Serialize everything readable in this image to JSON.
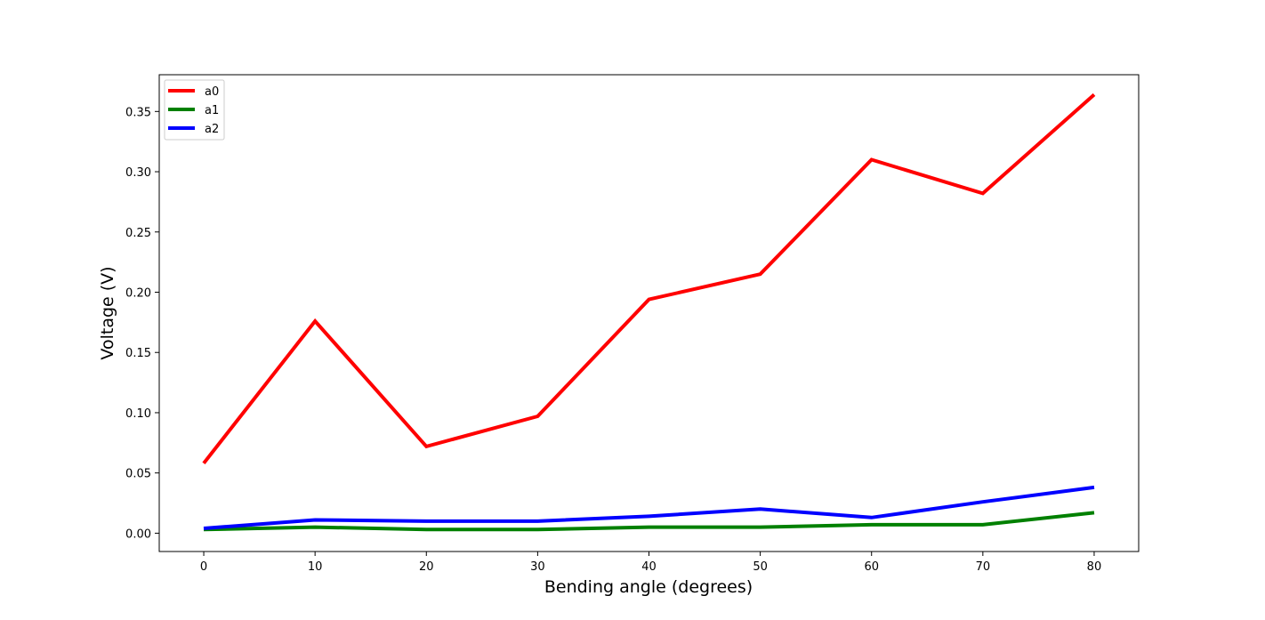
{
  "chart_data": {
    "type": "line",
    "title": "",
    "xlabel": "Bending angle (degrees)",
    "ylabel": "Voltage (V)",
    "xlim": [
      -4,
      84
    ],
    "ylim": [
      -0.0152,
      0.3805
    ],
    "x_ticks": [
      0,
      10,
      20,
      30,
      40,
      50,
      60,
      70,
      80
    ],
    "x_tick_labels": [
      "0",
      "10",
      "20",
      "30",
      "40",
      "50",
      "60",
      "70",
      "80"
    ],
    "y_ticks": [
      0.0,
      0.05,
      0.1,
      0.15,
      0.2,
      0.25,
      0.3,
      0.35
    ],
    "y_tick_labels": [
      "0.00",
      "0.05",
      "0.10",
      "0.15",
      "0.20",
      "0.25",
      "0.30",
      "0.35"
    ],
    "grid": false,
    "legend_position": "upper-left",
    "x": [
      0,
      10,
      20,
      30,
      40,
      50,
      60,
      70,
      80
    ],
    "series": [
      {
        "name": "a0",
        "color": "#ff0000",
        "values": [
          0.058,
          0.176,
          0.072,
          0.097,
          0.194,
          0.215,
          0.31,
          0.282,
          0.364
        ]
      },
      {
        "name": "a1",
        "color": "#008000",
        "values": [
          0.003,
          0.005,
          0.003,
          0.003,
          0.005,
          0.005,
          0.007,
          0.007,
          0.017
        ]
      },
      {
        "name": "a2",
        "color": "#0000ff",
        "values": [
          0.004,
          0.011,
          0.01,
          0.01,
          0.014,
          0.02,
          0.013,
          0.026,
          0.038
        ]
      }
    ]
  }
}
